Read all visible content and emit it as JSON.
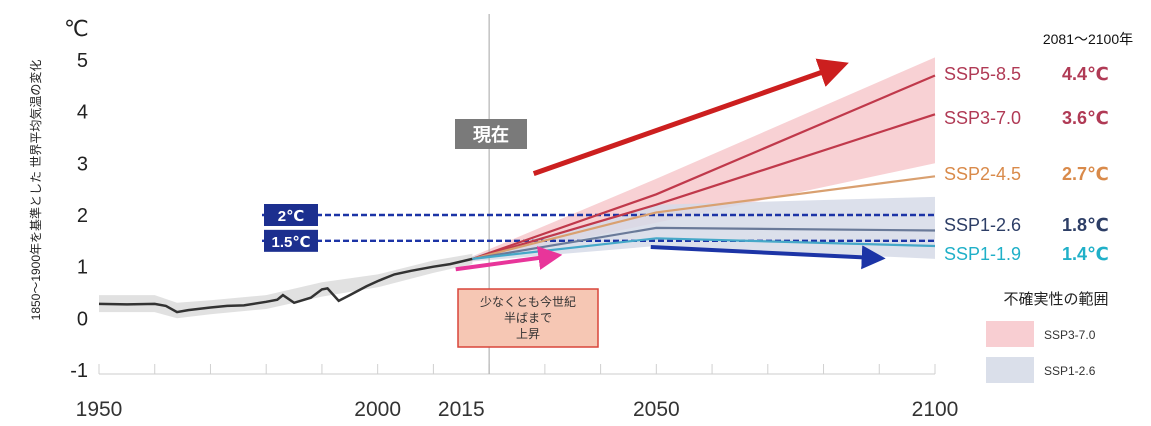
{
  "chart_data": {
    "type": "line",
    "title": "",
    "unit_label": "℃",
    "ylabel": "1850〜1900年を基準とした 世界平均気温の変化",
    "ylim": [
      -1,
      5
    ],
    "xlim": [
      1950,
      2100
    ],
    "y_ticks": [
      -1,
      0,
      1,
      2,
      3,
      4,
      5
    ],
    "x_ticks": [
      1950,
      2000,
      2015,
      2050,
      2100
    ],
    "present_year": 2020,
    "present_label": "現在",
    "period_label": "2081〜2100年",
    "historical": {
      "name": "",
      "color": "#333333",
      "points": [
        [
          1950,
          0.28
        ],
        [
          1955,
          0.27
        ],
        [
          1960,
          0.28
        ],
        [
          1962,
          0.24
        ],
        [
          1964,
          0.12
        ],
        [
          1966,
          0.16
        ],
        [
          1970,
          0.21
        ],
        [
          1973,
          0.24
        ],
        [
          1976,
          0.25
        ],
        [
          1980,
          0.32
        ],
        [
          1982,
          0.36
        ],
        [
          1983,
          0.45
        ],
        [
          1985,
          0.3
        ],
        [
          1988,
          0.4
        ],
        [
          1990,
          0.56
        ],
        [
          1991,
          0.58
        ],
        [
          1993,
          0.34
        ],
        [
          1995,
          0.45
        ],
        [
          1998,
          0.62
        ],
        [
          2000,
          0.72
        ],
        [
          2003,
          0.85
        ],
        [
          2006,
          0.92
        ],
        [
          2010,
          1.0
        ],
        [
          2013,
          1.05
        ],
        [
          2015,
          1.1
        ],
        [
          2017,
          1.15
        ]
      ],
      "band_upper": [
        [
          1950,
          0.45
        ],
        [
          1960,
          0.45
        ],
        [
          1964,
          0.3
        ],
        [
          1970,
          0.35
        ],
        [
          1980,
          0.45
        ],
        [
          1990,
          0.7
        ],
        [
          2000,
          0.85
        ],
        [
          2010,
          1.12
        ],
        [
          2017,
          1.25
        ]
      ],
      "band_lower": [
        [
          1950,
          0.12
        ],
        [
          1960,
          0.12
        ],
        [
          1964,
          0.0
        ],
        [
          1970,
          0.08
        ],
        [
          1980,
          0.18
        ],
        [
          1990,
          0.42
        ],
        [
          2000,
          0.6
        ],
        [
          2010,
          0.88
        ],
        [
          2017,
          1.05
        ]
      ]
    },
    "series": [
      {
        "name": "SSP5-8.5",
        "value": "4.4℃",
        "color": "#c0394b",
        "label_color": "#b03a55",
        "points": [
          [
            2017,
            1.15
          ],
          [
            2050,
            2.4
          ],
          [
            2100,
            4.7
          ]
        ]
      },
      {
        "name": "SSP3-7.0",
        "value": "3.6℃",
        "color": "#c0394b",
        "label_color": "#b03a55",
        "points": [
          [
            2017,
            1.15
          ],
          [
            2050,
            2.2
          ],
          [
            2100,
            3.95
          ]
        ]
      },
      {
        "name": "SSP2-4.5",
        "value": "2.7℃",
        "color": "#d9a070",
        "label_color": "#d98a4a",
        "points": [
          [
            2017,
            1.15
          ],
          [
            2050,
            2.05
          ],
          [
            2100,
            2.75
          ]
        ]
      },
      {
        "name": "SSP1-2.6",
        "value": "1.8℃",
        "color": "#6a7a99",
        "label_color": "#2d3e66",
        "points": [
          [
            2017,
            1.15
          ],
          [
            2050,
            1.75
          ],
          [
            2100,
            1.7
          ]
        ]
      },
      {
        "name": "SSP1-1.9",
        "value": "1.4℃",
        "color": "#46a8c8",
        "label_color": "#20b0c8",
        "points": [
          [
            2017,
            1.15
          ],
          [
            2050,
            1.55
          ],
          [
            2100,
            1.4
          ]
        ]
      }
    ],
    "uncertainty": [
      {
        "name": "SSP3-7.0",
        "color": "#f7c9cd",
        "upper": [
          [
            2017,
            1.2
          ],
          [
            2050,
            2.7
          ],
          [
            2100,
            5.05
          ]
        ],
        "lower": [
          [
            2017,
            1.1
          ],
          [
            2050,
            1.85
          ],
          [
            2100,
            3.0
          ]
        ]
      },
      {
        "name": "SSP1-2.6",
        "color": "#d6dbe8",
        "upper": [
          [
            2017,
            1.2
          ],
          [
            2050,
            2.2
          ],
          [
            2100,
            2.35
          ]
        ],
        "lower": [
          [
            2017,
            1.1
          ],
          [
            2050,
            1.4
          ],
          [
            2100,
            1.15
          ]
        ]
      }
    ],
    "thresholds": [
      {
        "value": 2.0,
        "label": "2℃"
      },
      {
        "value": 1.5,
        "label": "1.5℃"
      }
    ],
    "annotation": {
      "lines": [
        "少なくとも今世紀",
        "半ばまで",
        "上昇"
      ]
    },
    "legend": {
      "title": "不確実性の範囲",
      "items": [
        {
          "label": "SSP3-7.0",
          "color": "#f7c9cd"
        },
        {
          "label": "SSP1-2.6",
          "color": "#d6dbe8"
        }
      ]
    },
    "arrows": [
      {
        "name": "rise-arrow-high",
        "color": "#cc1f1f",
        "from": [
          2028,
          2.8
        ],
        "to": [
          2082,
          4.85
        ]
      },
      {
        "name": "rise-arrow-near",
        "color": "#e8359a",
        "from": [
          2014,
          0.95
        ],
        "to": [
          2031,
          1.2
        ]
      },
      {
        "name": "flat-arrow-low",
        "color": "#1c34a6",
        "from": [
          2049,
          1.38
        ],
        "to": [
          2089,
          1.17
        ]
      }
    ]
  }
}
